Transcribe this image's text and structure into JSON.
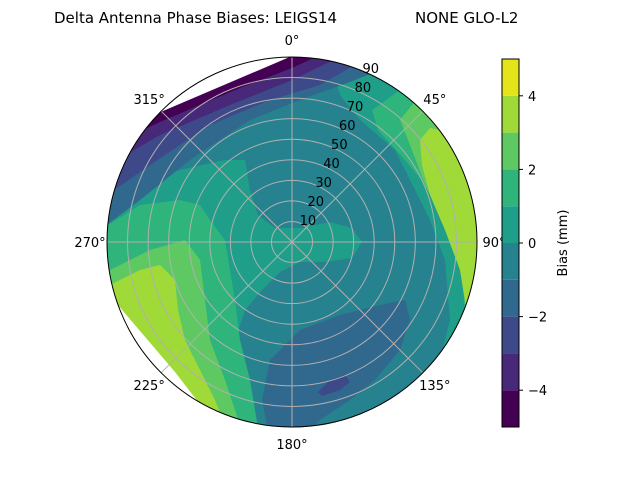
{
  "chart_data": {
    "type": "contour",
    "projection": "polar",
    "title": "Delta Antenna Phase Biases: LEIGS14",
    "title_right": "NONE GLO-L2",
    "theta_zero": "north",
    "theta_direction": "clockwise",
    "theta_tick_labels": [
      "0°",
      "45°",
      "90°",
      "135°",
      "180°",
      "225°",
      "270°",
      "315°"
    ],
    "r_ticks": [
      10,
      20,
      30,
      40,
      50,
      60,
      70,
      80,
      90
    ],
    "r_tick_labels": [
      "10",
      "20",
      "30",
      "40",
      "50",
      "60",
      "70",
      "80",
      "90"
    ],
    "rlim": [
      0,
      90
    ],
    "grid": true,
    "levels": [
      -5,
      -4,
      -3,
      -2,
      -1,
      0,
      1,
      2,
      3,
      4,
      5
    ],
    "colormap": "viridis",
    "level_colors": [
      "#440154",
      "#482878",
      "#3e4989",
      "#31688e",
      "#26828e",
      "#1f9e89",
      "#2fb47c",
      "#5ec962",
      "#a0da39",
      "#e5e419"
    ],
    "colorbar": {
      "label": "Bias (mm)",
      "range": [
        -5,
        5
      ],
      "ticks": [
        -4,
        -2,
        0,
        2,
        4
      ],
      "tick_labels": [
        "−4",
        "−2",
        "0",
        "2",
        "4"
      ]
    }
  }
}
